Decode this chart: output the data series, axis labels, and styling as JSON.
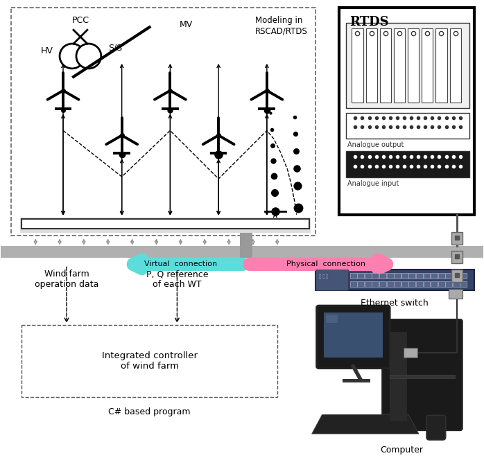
{
  "fig_width": 6.98,
  "fig_height": 6.61,
  "bg_color": "#ffffff",
  "title_modeling": "Modeling in\nRSCAD/RTDS",
  "title_rtds": "RTDS",
  "label_pcc": "PCC",
  "label_hv": "HV",
  "label_ss": "S/S",
  "label_mv": "MV",
  "label_analogue_output": "Analogue output",
  "label_analogue_input": "Analogue input",
  "label_wind_farm_data": "Wind farm\noperation data",
  "label_pq_ref": "P, Q reference\nof each WT",
  "label_controller": "Integrated controller\nof wind farm",
  "label_csharp": "C# based program",
  "label_ethernet": "Ethernet switch",
  "label_computer": "Computer",
  "label_virtual": "Virtual  connection",
  "label_physical": "Physical  connection",
  "arrow_virtual_color": "#5ddcdc",
  "arrow_physical_color": "#ff80b0",
  "black": "#000000",
  "gray_bus": "#aaaaaa",
  "dark_bus": "#333333",
  "connector_gray": "#999999"
}
